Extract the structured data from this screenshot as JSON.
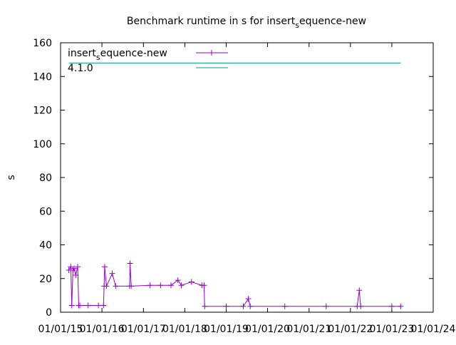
{
  "chart_data": {
    "type": "line",
    "title": "Benchmark runtime in s for insert_sequence-new",
    "y_label": "s",
    "xlim": [
      "2015-01-01",
      "2024-01-01"
    ],
    "xticks": [
      {
        "value": "2015-01-01",
        "label": "01/01/15"
      },
      {
        "value": "2016-01-01",
        "label": "01/01/16"
      },
      {
        "value": "2017-01-01",
        "label": "01/01/17"
      },
      {
        "value": "2018-01-01",
        "label": "01/01/18"
      },
      {
        "value": "2019-01-01",
        "label": "01/01/19"
      },
      {
        "value": "2020-01-01",
        "label": "01/01/20"
      },
      {
        "value": "2021-01-01",
        "label": "01/01/21"
      },
      {
        "value": "2022-01-01",
        "label": "01/01/22"
      },
      {
        "value": "2023-01-01",
        "label": "01/01/23"
      },
      {
        "value": "2024-01-01",
        "label": "01/01/24"
      }
    ],
    "ylim": [
      0,
      160
    ],
    "yticks": [
      0,
      20,
      40,
      60,
      80,
      100,
      120,
      140,
      160
    ],
    "legend": "top-left",
    "series": [
      {
        "name": "insert_sequence-new",
        "color": "#9400d3",
        "marker": "plus",
        "x": [
          "2015-03-15",
          "2015-04-01",
          "2015-04-10",
          "2015-04-20",
          "2015-05-01",
          "2015-05-15",
          "2015-06-01",
          "2015-06-10",
          "2015-06-20",
          "2015-09-01",
          "2015-12-01",
          "2016-01-15",
          "2016-01-20",
          "2016-01-25",
          "2016-02-10",
          "2016-04-01",
          "2016-05-01",
          "2016-09-01",
          "2016-09-05",
          "2016-09-15",
          "2017-03-01",
          "2017-06-01",
          "2017-09-01",
          "2017-11-01",
          "2017-12-01",
          "2018-03-01",
          "2018-06-01",
          "2018-06-20",
          "2018-06-25",
          "2019-01-01",
          "2019-06-01",
          "2019-07-15",
          "2019-08-01",
          "2020-06-01",
          "2021-06-01",
          "2022-03-01",
          "2022-03-20",
          "2022-04-01",
          "2023-01-01",
          "2023-03-20"
        ],
        "values": [
          25,
          27,
          4,
          25,
          26,
          22,
          27,
          4,
          4,
          4,
          4,
          4,
          15.5,
          27,
          15.5,
          23,
          15.5,
          15.5,
          29,
          15.5,
          16,
          16,
          16,
          19,
          16,
          18,
          16,
          16,
          3.5,
          3.5,
          3.5,
          8,
          3.5,
          3.5,
          3.5,
          3.5,
          13,
          3.5,
          3.5,
          3.5
        ]
      },
      {
        "name": "4.1.0",
        "color": "#009e73",
        "x": [
          "2015-03-15",
          "2023-03-20"
        ],
        "values": [
          148,
          148
        ]
      }
    ]
  }
}
